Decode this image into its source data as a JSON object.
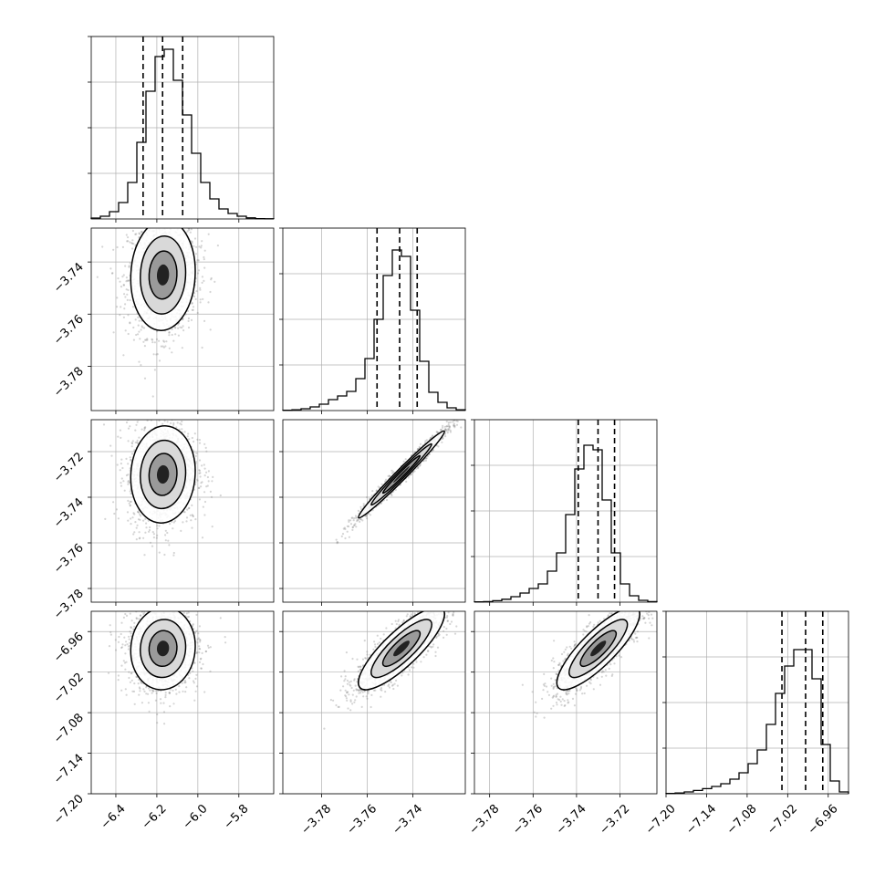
{
  "chart_data": {
    "type": "corner",
    "bins": 20,
    "colors": {
      "line": "#000000",
      "grid": "#b0b0b0",
      "points": "#888888"
    },
    "grid": true,
    "parameters": [
      {
        "xlim": [
          -6.52,
          -5.63
        ],
        "ticks": [
          -6.4,
          -6.2,
          -6.0,
          -5.8
        ],
        "tick_labels": [
          "−6.4",
          "−6.2",
          "−6.0",
          "−5.8"
        ],
        "hist_ticks": [
          0.25,
          0.5,
          0.75,
          1.0
        ],
        "quantiles": [
          -6.267,
          -6.172,
          -6.074
        ],
        "histogram": [
          0.005,
          0.015,
          0.04,
          0.09,
          0.2,
          0.42,
          0.7,
          0.89,
          0.93,
          0.76,
          0.57,
          0.36,
          0.2,
          0.11,
          0.055,
          0.03,
          0.015,
          0.006,
          0.002,
          0.001
        ]
      },
      {
        "xlim": [
          -3.797,
          -3.717
        ],
        "ticks": [
          -3.78,
          -3.76,
          -3.74
        ],
        "tick_labels": [
          "−3.78",
          "−3.76",
          "−3.74"
        ],
        "ylim": [
          -3.797,
          -3.727
        ],
        "yticks": [
          -3.78,
          -3.76,
          -3.74
        ],
        "ytick_labels": [
          "−3.78",
          "−3.76",
          "−3.74"
        ],
        "hist_ticks": [
          0.25,
          0.5,
          0.75,
          1.0
        ],
        "quantiles": [
          -3.7557,
          -3.7458,
          -3.7381
        ],
        "histogram": [
          0.002,
          0.004,
          0.01,
          0.02,
          0.035,
          0.06,
          0.08,
          0.105,
          0.175,
          0.285,
          0.5,
          0.74,
          0.88,
          0.845,
          0.55,
          0.27,
          0.1,
          0.045,
          0.015,
          0.004
        ]
      },
      {
        "xlim": [
          -3.787,
          -3.703
        ],
        "ticks": [
          -3.78,
          -3.76,
          -3.74,
          -3.72
        ],
        "tick_labels": [
          "−3.78",
          "−3.76",
          "−3.74",
          "−3.72"
        ],
        "ylim": [
          -3.786,
          -3.706
        ],
        "yticks": [
          -3.78,
          -3.76,
          -3.74,
          -3.72
        ],
        "ytick_labels": [
          "−3.78",
          "−3.76",
          "−3.74",
          "−3.72"
        ],
        "hist_ticks": [
          0.25,
          0.5,
          0.75,
          1.0
        ],
        "quantiles": [
          -3.7392,
          -3.7301,
          -3.7225
        ],
        "histogram": [
          0.002,
          0.003,
          0.008,
          0.016,
          0.03,
          0.05,
          0.075,
          0.1,
          0.17,
          0.27,
          0.48,
          0.73,
          0.86,
          0.835,
          0.56,
          0.27,
          0.1,
          0.035,
          0.01,
          0.003
        ]
      },
      {
        "xlim": [
          -7.2,
          -6.93
        ],
        "ticks": [
          -7.2,
          -7.14,
          -7.08,
          -7.02,
          -6.96
        ],
        "tick_labels": [
          "−7.20",
          "−7.14",
          "−7.08",
          "−7.02",
          "−6.96"
        ],
        "ylim": [
          -7.2,
          -6.93
        ],
        "yticks": [
          -7.2,
          -7.14,
          -7.08,
          -7.02,
          -6.96
        ],
        "ytick_labels": [
          "−7.20",
          "−7.14",
          "−7.08",
          "−7.02",
          "−6.96"
        ],
        "hist_ticks": [
          0.25,
          0.5,
          0.75,
          1.0
        ],
        "quantiles": [
          -7.0285,
          -6.9935,
          -6.9681
        ],
        "histogram": [
          0.002,
          0.004,
          0.01,
          0.018,
          0.028,
          0.04,
          0.055,
          0.08,
          0.115,
          0.165,
          0.24,
          0.38,
          0.55,
          0.7,
          0.79,
          0.79,
          0.63,
          0.27,
          0.07,
          0.01
        ]
      }
    ],
    "pairs": [
      {
        "row": 1,
        "col": 0,
        "x": -6.17,
        "y": -3.745,
        "sx": 0.085,
        "sy": 0.0115,
        "rho": 0.06
      },
      {
        "row": 2,
        "col": 0,
        "x": -6.17,
        "y": -3.73,
        "sx": 0.085,
        "sy": 0.0115,
        "rho": 0.06
      },
      {
        "row": 2,
        "col": 1,
        "x": -3.745,
        "y": -3.73,
        "sx": 0.0102,
        "sy": 0.0103,
        "rho": 0.985
      },
      {
        "row": 3,
        "col": 0,
        "x": -6.17,
        "y": -6.985,
        "sx": 0.085,
        "sy": 0.033,
        "rho": 0.05
      },
      {
        "row": 3,
        "col": 1,
        "x": -3.745,
        "y": -6.985,
        "sx": 0.0102,
        "sy": 0.033,
        "rho": 0.83
      },
      {
        "row": 3,
        "col": 2,
        "x": -3.73,
        "y": -6.985,
        "sx": 0.0103,
        "sy": 0.033,
        "rho": 0.83
      }
    ]
  }
}
